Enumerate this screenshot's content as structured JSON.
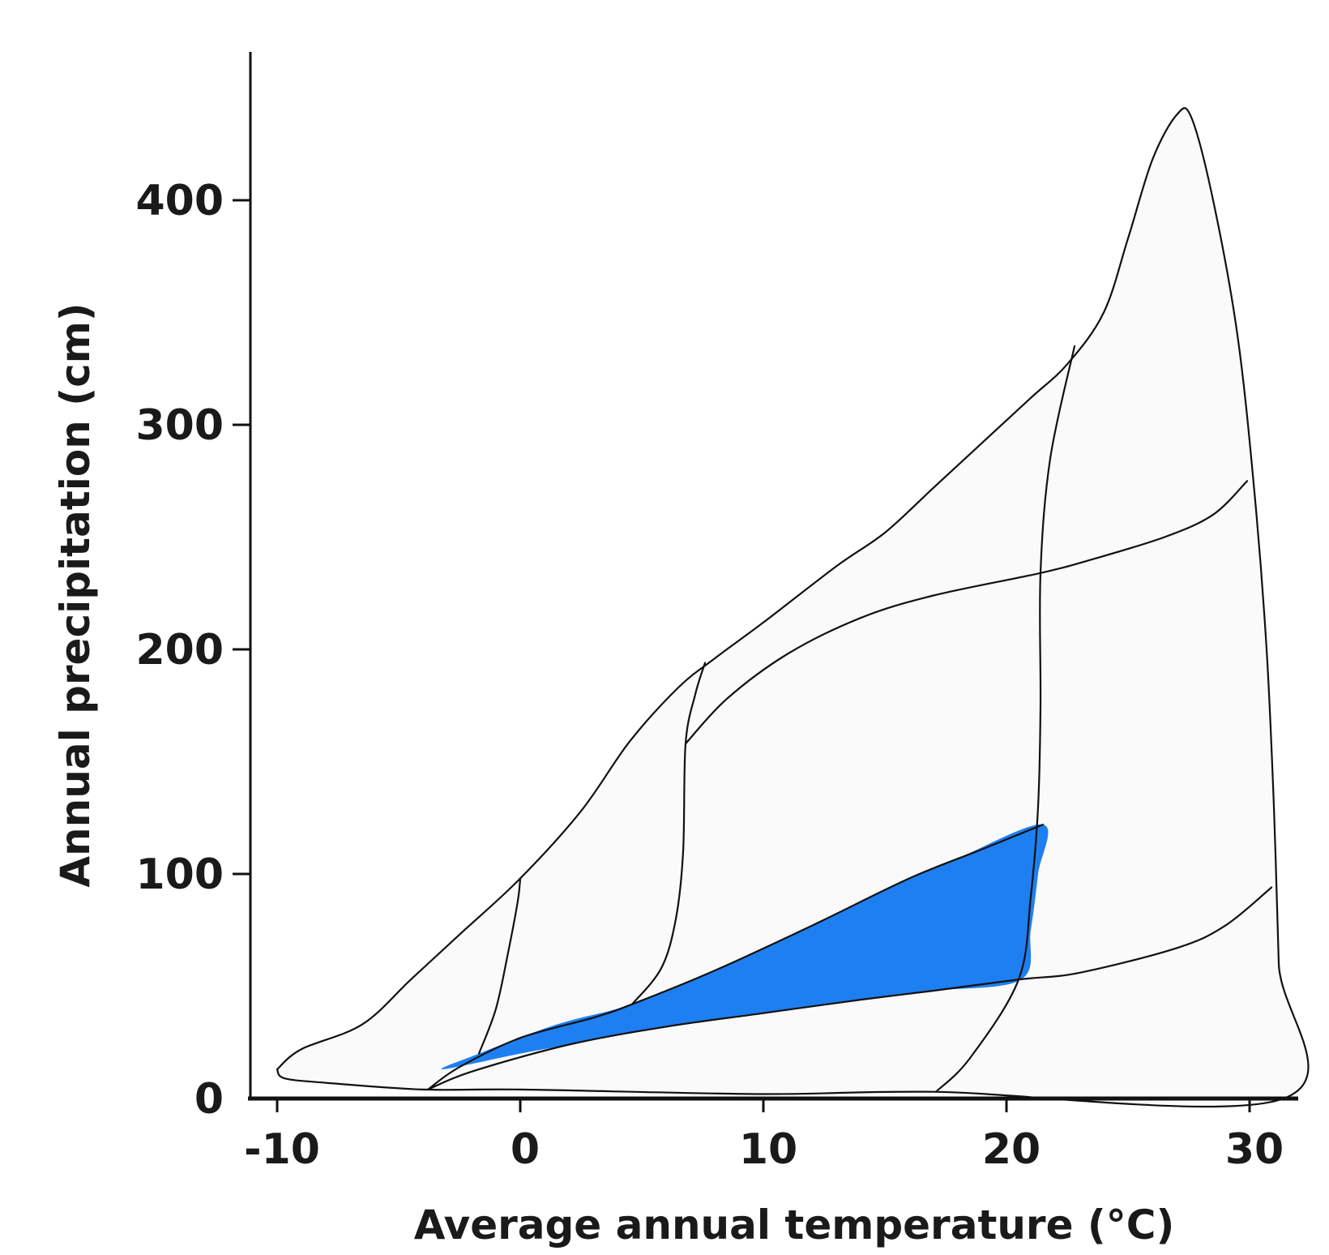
{
  "chart_data": {
    "type": "area",
    "title": "",
    "xlabel": "Average annual temperature (°C)",
    "ylabel": "Annual precipitation (cm)",
    "xlim": [
      -11.2,
      32
    ],
    "ylim": [
      0,
      465
    ],
    "x_ticks": [
      {
        "value": -10,
        "label": "-10"
      },
      {
        "value": 0,
        "label": "0"
      },
      {
        "value": 10,
        "label": "10"
      },
      {
        "value": 20,
        "label": "20"
      },
      {
        "value": 30,
        "label": "30"
      }
    ],
    "y_ticks": [
      {
        "value": 0,
        "label": "0"
      },
      {
        "value": 100,
        "label": "100"
      },
      {
        "value": 200,
        "label": "200"
      },
      {
        "value": 300,
        "label": "300"
      },
      {
        "value": 400,
        "label": "400"
      }
    ],
    "grid": false,
    "highlight_color": "#1e7ff0",
    "line_color": "#111111",
    "outline": [
      [
        -10,
        13
      ],
      [
        -9.0,
        22
      ],
      [
        -6.5,
        33
      ],
      [
        -4.5,
        53
      ],
      [
        -2.5,
        73
      ],
      [
        0,
        98
      ],
      [
        2.5,
        128
      ],
      [
        4.5,
        159
      ],
      [
        6.5,
        183
      ],
      [
        8,
        196
      ],
      [
        10,
        212
      ],
      [
        13,
        237
      ],
      [
        15,
        252
      ],
      [
        17,
        272
      ],
      [
        19,
        292
      ],
      [
        21,
        312
      ],
      [
        22.5,
        327
      ],
      [
        24,
        350
      ],
      [
        25,
        383
      ],
      [
        26,
        418
      ],
      [
        27,
        438
      ],
      [
        27.6,
        437
      ],
      [
        28.5,
        400
      ],
      [
        29.5,
        340
      ],
      [
        30.2,
        270
      ],
      [
        30.7,
        200
      ],
      [
        31,
        130
      ],
      [
        31.2,
        60
      ],
      [
        31.4,
        0
      ],
      [
        17,
        3
      ],
      [
        10,
        2
      ],
      [
        0,
        4
      ],
      [
        -4,
        4
      ],
      [
        -8,
        7
      ],
      [
        -9.7,
        9
      ],
      [
        -10,
        13
      ]
    ],
    "boundaries": [
      [
        [
          -1.7,
          20
        ],
        [
          -1,
          40
        ],
        [
          -0.5,
          65
        ],
        [
          -0.1,
          88
        ],
        [
          0,
          98
        ]
      ],
      [
        [
          4.6,
          42
        ],
        [
          5.8,
          58
        ],
        [
          6.4,
          80
        ],
        [
          6.7,
          110
        ],
        [
          6.8,
          158
        ],
        [
          7.2,
          180
        ],
        [
          7.6,
          194
        ]
      ],
      [
        [
          -3.8,
          4
        ],
        [
          -2.5,
          14
        ],
        [
          0,
          27
        ],
        [
          3,
          36
        ],
        [
          4.6,
          42
        ],
        [
          8,
          57
        ],
        [
          12,
          77
        ],
        [
          16,
          98
        ],
        [
          19,
          111
        ],
        [
          21.5,
          122
        ]
      ],
      [
        [
          -3.8,
          4
        ],
        [
          -2,
          12
        ],
        [
          2,
          24
        ],
        [
          6,
          32
        ],
        [
          10,
          38
        ],
        [
          14,
          44
        ],
        [
          17,
          48
        ],
        [
          20.5,
          53
        ],
        [
          23,
          56
        ],
        [
          27,
          67
        ],
        [
          29,
          77
        ],
        [
          30.9,
          94
        ]
      ],
      [
        [
          17.1,
          3
        ],
        [
          18.5,
          18
        ],
        [
          20.5,
          53
        ],
        [
          21,
          90
        ],
        [
          21.3,
          130
        ],
        [
          21.4,
          175
        ],
        [
          21.4,
          234
        ],
        [
          21.8,
          285
        ],
        [
          22.8,
          335
        ]
      ],
      [
        [
          6.8,
          158
        ],
        [
          8.5,
          178
        ],
        [
          11,
          198
        ],
        [
          14,
          214
        ],
        [
          17,
          224
        ],
        [
          21.4,
          234
        ],
        [
          23.5,
          240
        ],
        [
          26.5,
          250
        ],
        [
          28.5,
          260
        ],
        [
          29.9,
          275
        ]
      ]
    ],
    "highlight_region": [
      [
        -3.2,
        13
      ],
      [
        -1.7,
        20
      ],
      [
        1.5,
        33
      ],
      [
        4.6,
        42
      ],
      [
        8,
        57
      ],
      [
        12,
        77
      ],
      [
        15,
        93
      ],
      [
        18,
        107
      ],
      [
        21.5,
        122
      ],
      [
        21.3,
        100
      ],
      [
        21.0,
        75
      ],
      [
        20.6,
        53
      ],
      [
        17,
        48
      ],
      [
        14,
        44
      ],
      [
        10,
        38
      ],
      [
        6,
        32
      ],
      [
        2,
        24
      ],
      [
        0,
        20
      ],
      [
        -3.2,
        13
      ]
    ]
  }
}
